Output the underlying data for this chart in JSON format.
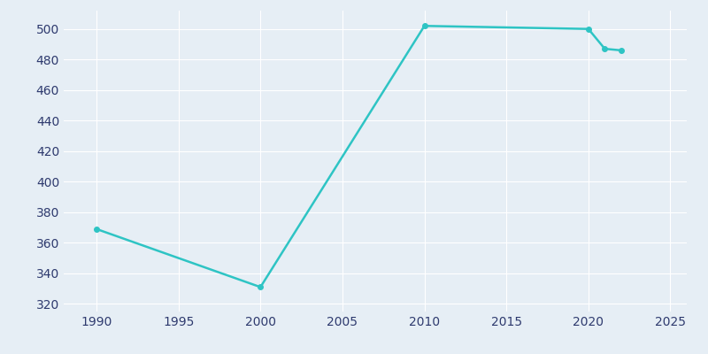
{
  "years": [
    1990,
    2000,
    2010,
    2020,
    2021,
    2022
  ],
  "population": [
    369,
    331,
    502,
    500,
    487,
    486
  ],
  "line_color": "#2EC4C4",
  "marker_color": "#2EC4C4",
  "bg_color": "#E6EEF5",
  "axes_bg_color": "#E6EEF5",
  "grid_color": "#ffffff",
  "tick_label_color": "#2E3A6E",
  "xlim": [
    1988,
    2026
  ],
  "ylim": [
    315,
    512
  ],
  "xticks": [
    1990,
    1995,
    2000,
    2005,
    2010,
    2015,
    2020,
    2025
  ],
  "yticks": [
    320,
    340,
    360,
    380,
    400,
    420,
    440,
    460,
    480,
    500
  ],
  "line_width": 1.8,
  "marker_size": 4
}
